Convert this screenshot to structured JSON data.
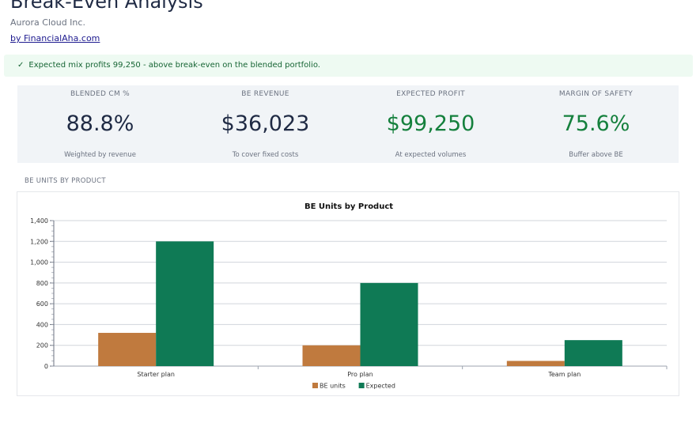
{
  "header": {
    "title": "Break-Even Analysis",
    "company": "Aurora Cloud Inc.",
    "byline": "by FinancialAha.com"
  },
  "banner": {
    "icon": "check-icon",
    "text": "Expected mix profits 99,250 - above break-even on the blended portfolio."
  },
  "kpis": [
    {
      "label": "BLENDED CM %",
      "value": "88.8%",
      "sub": "Weighted by revenue",
      "color": "#1f2a44"
    },
    {
      "label": "BE REVENUE",
      "value": "$36,023",
      "sub": "To cover fixed costs",
      "color": "#1f2a44"
    },
    {
      "label": "EXPECTED PROFIT",
      "value": "$99,250",
      "sub": "At expected volumes",
      "color": "#15803d"
    },
    {
      "label": "MARGIN OF SAFETY",
      "value": "75.6%",
      "sub": "Buffer above BE",
      "color": "#15803d"
    }
  ],
  "section": {
    "label": "BE UNITS BY PRODUCT"
  },
  "chart_data": {
    "type": "bar",
    "title": "BE Units by Product",
    "categories": [
      "Starter plan",
      "Pro plan",
      "Team plan"
    ],
    "series": [
      {
        "name": "BE units",
        "values": [
          320,
          200,
          50
        ],
        "color": "#c07a3e"
      },
      {
        "name": "Expected",
        "values": [
          1200,
          800,
          250
        ],
        "color": "#0f7a55"
      }
    ],
    "ylim": [
      0,
      1400
    ],
    "yticks": [
      "0",
      "200",
      "400",
      "600",
      "800",
      "1,000",
      "1,200",
      "1,400"
    ],
    "legend": "bottom-center",
    "grid": true
  }
}
